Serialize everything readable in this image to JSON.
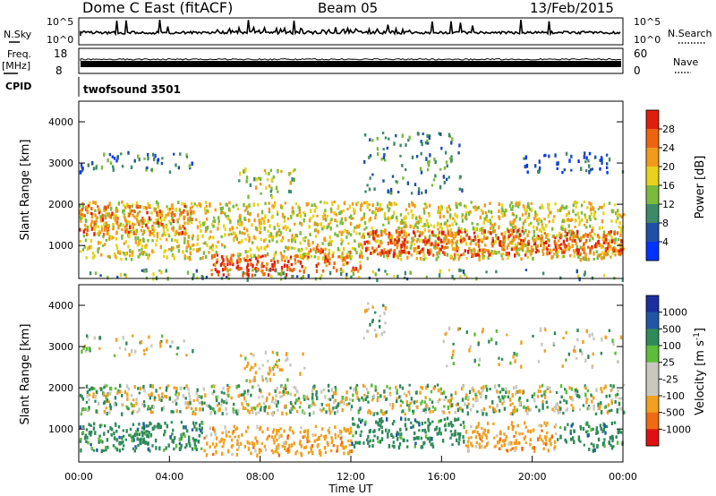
{
  "header": {
    "radar": "Dome C East (fitACF)",
    "beam": "Beam 05",
    "date": "13/Feb/2015"
  },
  "status_panels": {
    "nsky_label": "N.Sky",
    "nsky_ticks": [
      "10^5",
      "10^0"
    ],
    "nsearch_label": "N.Search",
    "nsearch_ticks": [
      "10^5",
      "10^0"
    ],
    "freq_label": "Freq.",
    "freq_unit": "[MHz]",
    "freq_ticks": [
      "18",
      "8"
    ],
    "nave_label": "Nave",
    "nave_ticks": [
      "60",
      "0"
    ],
    "cpid_label": "CPID",
    "cpid_value": "twofsound 3501"
  },
  "colors": {
    "power_scale": [
      "#0033ff",
      "#1f4fa8",
      "#3d8a68",
      "#7cba3c",
      "#e8d21a",
      "#f29a1a",
      "#ee6312",
      "#e01e0e"
    ],
    "velocity_scale": [
      "#e01010",
      "#ef6a12",
      "#f2a020",
      "#c8c8be",
      "#c8c8be",
      "#5cbd3a",
      "#2f8a5a",
      "#1e57a6",
      "#1a2fa0"
    ]
  },
  "chart_data": [
    {
      "type": "heatmap",
      "title": "",
      "xlabel": "Time UT",
      "ylabel": "Slant Range [km]",
      "xlim": [
        0,
        24
      ],
      "ylim": [
        200,
        4500
      ],
      "x_ticks": [
        "00:00",
        "04:00",
        "08:00",
        "12:00",
        "16:00",
        "20:00",
        "00:00"
      ],
      "y_ticks": [
        "1000",
        "2000",
        "3000",
        "4000"
      ],
      "colorbar_label": "Power [dB]",
      "colorbar_ticks": [
        "4",
        "8",
        "12",
        "16",
        "20",
        "24",
        "28"
      ],
      "colorbar_range": [
        0,
        32
      ],
      "regions": [
        {
          "x": [
            0,
            24
          ],
          "y": [
            700,
            2100
          ],
          "value": 18,
          "density": 0.55
        },
        {
          "x": [
            5.8,
            9.5
          ],
          "y": [
            300,
            800
          ],
          "value": 28,
          "density": 0.75
        },
        {
          "x": [
            9.5,
            12.5
          ],
          "y": [
            400,
            1000
          ],
          "value": 24,
          "density": 0.45
        },
        {
          "x": [
            12.5,
            24
          ],
          "y": [
            800,
            1400
          ],
          "value": 27,
          "density": 0.65
        },
        {
          "x": [
            0,
            5
          ],
          "y": [
            1300,
            2000
          ],
          "value": 24,
          "density": 0.6
        },
        {
          "x": [
            0,
            5
          ],
          "y": [
            2800,
            3300
          ],
          "value": 8,
          "density": 0.25
        },
        {
          "x": [
            7,
            9.5
          ],
          "y": [
            2200,
            2900
          ],
          "value": 16,
          "density": 0.3
        },
        {
          "x": [
            12.5,
            17
          ],
          "y": [
            2300,
            3800
          ],
          "value": 10,
          "density": 0.18
        },
        {
          "x": [
            19.5,
            24
          ],
          "y": [
            2800,
            3300
          ],
          "value": 6,
          "density": 0.25
        },
        {
          "x": [
            0,
            24
          ],
          "y": [
            200,
            450
          ],
          "value": 12,
          "density": 0.2
        }
      ]
    },
    {
      "type": "heatmap",
      "title": "",
      "xlabel": "Time UT",
      "ylabel": "Slant Range [km]",
      "xlim": [
        0,
        24
      ],
      "ylim": [
        200,
        4500
      ],
      "x_ticks": [
        "00:00",
        "04:00",
        "08:00",
        "12:00",
        "16:00",
        "20:00",
        "00:00"
      ],
      "y_ticks": [
        "1000",
        "2000",
        "3000",
        "4000"
      ],
      "colorbar_label": "Velocity [m s^-1]",
      "colorbar_ticks": [
        "1000",
        "500",
        "100",
        "25",
        "-25",
        "-100",
        "-500",
        "-1000"
      ],
      "regions": [
        {
          "x": [
            0,
            24
          ],
          "y": [
            1400,
            2100
          ],
          "value": 0,
          "density": 0.55
        },
        {
          "x": [
            0,
            5.5
          ],
          "y": [
            500,
            1200
          ],
          "value": 300,
          "density": 0.6
        },
        {
          "x": [
            5.5,
            12
          ],
          "y": [
            400,
            1100
          ],
          "value": -300,
          "density": 0.55
        },
        {
          "x": [
            12,
            17
          ],
          "y": [
            600,
            1300
          ],
          "value": 300,
          "density": 0.55
        },
        {
          "x": [
            17,
            21
          ],
          "y": [
            500,
            1200
          ],
          "value": -300,
          "density": 0.55
        },
        {
          "x": [
            21,
            24
          ],
          "y": [
            500,
            1200
          ],
          "value": 300,
          "density": 0.45
        },
        {
          "x": [
            7,
            10
          ],
          "y": [
            2200,
            2900
          ],
          "value": -150,
          "density": 0.3
        },
        {
          "x": [
            12.5,
            13.5
          ],
          "y": [
            3200,
            4100
          ],
          "value": 0,
          "density": 0.3
        },
        {
          "x": [
            0,
            5
          ],
          "y": [
            2800,
            3300
          ],
          "value": 0,
          "density": 0.2
        },
        {
          "x": [
            16,
            24
          ],
          "y": [
            2500,
            3500
          ],
          "value": 0,
          "density": 0.12
        }
      ]
    }
  ]
}
